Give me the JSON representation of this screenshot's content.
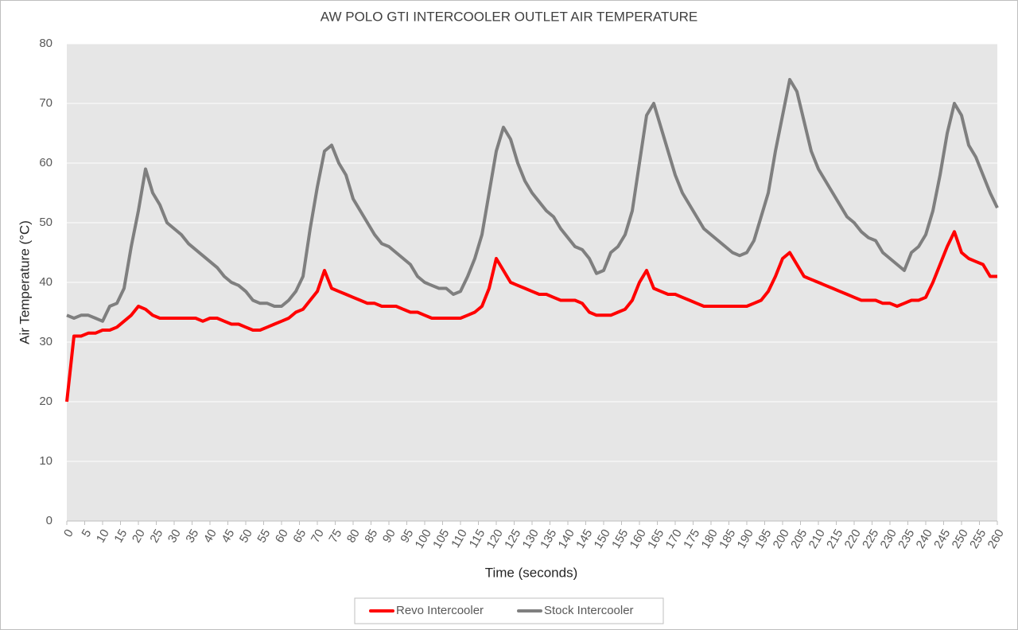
{
  "chart_data": {
    "type": "line",
    "title": "AW POLO GTI INTERCOOLER OUTLET AIR TEMPERATURE",
    "x_label": "Time (seconds)",
    "y_label": "Air Temperature (°C)",
    "xlim": [
      0,
      260
    ],
    "ylim": [
      0,
      80
    ],
    "xticks": [
      0,
      5,
      10,
      15,
      20,
      25,
      30,
      35,
      40,
      45,
      50,
      55,
      60,
      65,
      70,
      75,
      80,
      85,
      90,
      95,
      100,
      105,
      110,
      115,
      120,
      125,
      130,
      135,
      140,
      145,
      150,
      155,
      160,
      165,
      170,
      175,
      180,
      185,
      190,
      195,
      200,
      205,
      210,
      215,
      220,
      225,
      230,
      235,
      240,
      245,
      250,
      255,
      260
    ],
    "yticks": [
      0,
      10,
      20,
      30,
      40,
      50,
      60,
      70,
      80
    ],
    "grid": true,
    "legend": "bottom",
    "x": [
      0,
      2,
      4,
      6,
      8,
      10,
      12,
      14,
      16,
      18,
      20,
      22,
      24,
      26,
      28,
      30,
      32,
      34,
      36,
      38,
      40,
      42,
      44,
      46,
      48,
      50,
      52,
      54,
      56,
      58,
      60,
      62,
      64,
      66,
      68,
      70,
      72,
      74,
      76,
      78,
      80,
      82,
      84,
      86,
      88,
      90,
      92,
      94,
      96,
      98,
      100,
      102,
      104,
      106,
      108,
      110,
      112,
      114,
      116,
      118,
      120,
      122,
      124,
      126,
      128,
      130,
      132,
      134,
      136,
      138,
      140,
      142,
      144,
      146,
      148,
      150,
      152,
      154,
      156,
      158,
      160,
      162,
      164,
      166,
      168,
      170,
      172,
      174,
      176,
      178,
      180,
      182,
      184,
      186,
      188,
      190,
      192,
      194,
      196,
      198,
      200,
      202,
      204,
      206,
      208,
      210,
      212,
      214,
      216,
      218,
      220,
      222,
      224,
      226,
      228,
      230,
      232,
      234,
      236,
      238,
      240,
      242,
      244,
      246,
      248,
      250,
      252,
      254,
      256,
      258,
      260
    ],
    "series": [
      {
        "name": "Revo Intercooler",
        "color": "#ff0000",
        "values": [
          20,
          31,
          31,
          31.5,
          31.5,
          32,
          32,
          32.5,
          33.5,
          34.5,
          36,
          35.5,
          34.5,
          34,
          34,
          34,
          34,
          34,
          34,
          33.5,
          34,
          34,
          33.5,
          33,
          33,
          32.5,
          32,
          32,
          32.5,
          33,
          33.5,
          34,
          35,
          35.5,
          37,
          38.5,
          42,
          39,
          38.5,
          38,
          37.5,
          37,
          36.5,
          36.5,
          36,
          36,
          36,
          35.5,
          35,
          35,
          34.5,
          34,
          34,
          34,
          34,
          34,
          34.5,
          35,
          36,
          39,
          44,
          42,
          40,
          39.5,
          39,
          38.5,
          38,
          38,
          37.5,
          37,
          37,
          37,
          36.5,
          35,
          34.5,
          34.5,
          34.5,
          35,
          35.5,
          37,
          40,
          42,
          39,
          38.5,
          38,
          38,
          37.5,
          37,
          36.5,
          36,
          36,
          36,
          36,
          36,
          36,
          36,
          36.5,
          37,
          38.5,
          41,
          44,
          45,
          43,
          41,
          40.5,
          40,
          39.5,
          39,
          38.5,
          38,
          37.5,
          37,
          37,
          37,
          36.5,
          36.5,
          36,
          36.5,
          37,
          37,
          37.5,
          40,
          43,
          46,
          48.5,
          45,
          44,
          43.5,
          43,
          41,
          41
        ]
      },
      {
        "name": "Stock Intercooler",
        "color": "#7f7f7f",
        "values": [
          34.5,
          34,
          34.5,
          34.5,
          34,
          33.5,
          36,
          36.5,
          39,
          46,
          52,
          59,
          55,
          53,
          50,
          49,
          48,
          46.5,
          45.5,
          44.5,
          43.5,
          42.5,
          41,
          40,
          39.5,
          38.5,
          37,
          36.5,
          36.5,
          36,
          36,
          37,
          38.5,
          41,
          49,
          56,
          62,
          63,
          60,
          58,
          54,
          52,
          50,
          48,
          46.5,
          46,
          45,
          44,
          43,
          41,
          40,
          39.5,
          39,
          39,
          38,
          38.5,
          41,
          44,
          48,
          55,
          62,
          66,
          64,
          60,
          57,
          55,
          53.5,
          52,
          51,
          49,
          47.5,
          46,
          45.5,
          44,
          41.5,
          42,
          45,
          46,
          48,
          52,
          60,
          68,
          70,
          66,
          62,
          58,
          55,
          53,
          51,
          49,
          48,
          47,
          46,
          45,
          44.5,
          45,
          47,
          51,
          55,
          62,
          68,
          74,
          72,
          67,
          62,
          59,
          57,
          55,
          53,
          51,
          50,
          48.5,
          47.5,
          47,
          45,
          44,
          43,
          42,
          45,
          46,
          48,
          52,
          58,
          65,
          70,
          68,
          63,
          61,
          58,
          55,
          52.5
        ]
      }
    ]
  }
}
